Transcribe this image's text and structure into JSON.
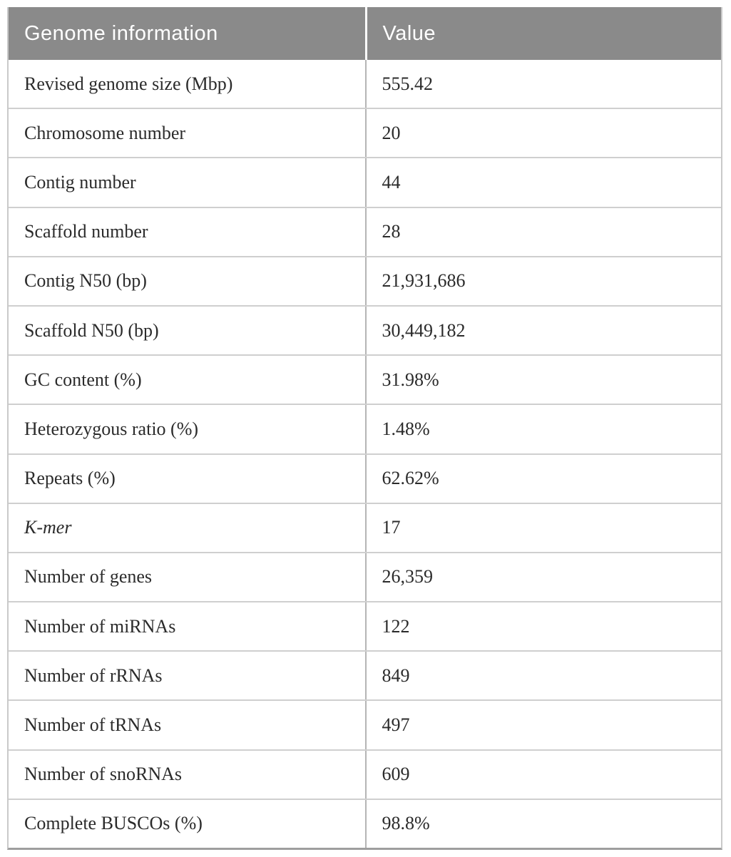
{
  "table": {
    "header": {
      "col1": "Genome information",
      "col2": "Value"
    },
    "rows": [
      {
        "label": "Revised genome size (Mbp)",
        "value": "555.42",
        "italic": false
      },
      {
        "label": "Chromosome number",
        "value": "20",
        "italic": false
      },
      {
        "label": "Contig number",
        "value": "44",
        "italic": false
      },
      {
        "label": "Scaffold number",
        "value": "28",
        "italic": false
      },
      {
        "label": "Contig N50 (bp)",
        "value": "21,931,686",
        "italic": false
      },
      {
        "label": "Scaffold N50 (bp)",
        "value": "30,449,182",
        "italic": false
      },
      {
        "label": "GC content (%)",
        "value": "31.98%",
        "italic": false
      },
      {
        "label": "Heterozygous ratio (%)",
        "value": "1.48%",
        "italic": false
      },
      {
        "label": "Repeats (%)",
        "value": "62.62%",
        "italic": false
      },
      {
        "label": "K-mer",
        "value": "17",
        "italic": true
      },
      {
        "label": "Number of genes",
        "value": "26,359",
        "italic": false
      },
      {
        "label": "Number of miRNAs",
        "value": "122",
        "italic": false
      },
      {
        "label": "Number of rRNAs",
        "value": "849",
        "italic": false
      },
      {
        "label": "Number of tRNAs",
        "value": "497",
        "italic": false
      },
      {
        "label": "Number of snoRNAs",
        "value": "609",
        "italic": false
      },
      {
        "label": "Complete BUSCOs (%)",
        "value": "98.8%",
        "italic": false
      }
    ]
  },
  "colors": {
    "header_bg": "#8a8a8a",
    "header_text": "#ffffff",
    "body_text": "#2b2b2b",
    "row_divider": "#cfcfcf",
    "column_divider": "#b5b5b5",
    "outer_border": "#c9c9c9",
    "bottom_border": "#9e9e9e"
  }
}
